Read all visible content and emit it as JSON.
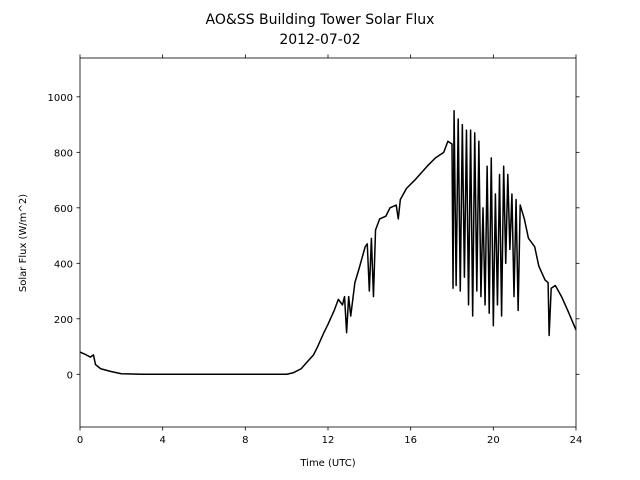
{
  "chart_data": {
    "type": "line",
    "title": "AO&SS Building Tower Solar Flux",
    "subtitle": "2012-07-02",
    "x_label": "Time (UTC)",
    "y_label": "Solar Flux (W/m^2)",
    "color": "#000000",
    "xlim": [
      0,
      24
    ],
    "ylim": [
      -190,
      1140
    ],
    "xticks": [
      0,
      4,
      8,
      12,
      16,
      20,
      24
    ],
    "yticks": [
      0,
      200,
      400,
      600,
      800,
      1000
    ],
    "x": [
      0,
      0.3,
      0.5,
      0.65,
      0.75,
      1.0,
      1.5,
      2,
      3,
      10,
      10.3,
      10.7,
      11,
      11.3,
      11.5,
      11.8,
      12,
      12.3,
      12.5,
      12.7,
      12.8,
      12.9,
      13.0,
      13.1,
      13.3,
      13.5,
      13.8,
      13.9,
      14.0,
      14.1,
      14.2,
      14.3,
      14.5,
      14.8,
      15.0,
      15.3,
      15.4,
      15.5,
      15.8,
      16.2,
      16.8,
      17.2,
      17.6,
      17.8,
      18.0,
      18.05,
      18.1,
      18.2,
      18.3,
      18.4,
      18.5,
      18.6,
      18.7,
      18.8,
      18.9,
      19.0,
      19.1,
      19.2,
      19.3,
      19.4,
      19.5,
      19.6,
      19.7,
      19.8,
      19.9,
      20.0,
      20.1,
      20.2,
      20.3,
      20.4,
      20.5,
      20.6,
      20.7,
      20.8,
      20.9,
      21.0,
      21.1,
      21.2,
      21.3,
      21.5,
      21.7,
      22.0,
      22.2,
      22.5,
      22.65,
      22.7,
      22.8,
      23.0,
      23.3,
      23.6,
      24.0
    ],
    "values": [
      80,
      70,
      62,
      70,
      35,
      20,
      10,
      2,
      0,
      0,
      5,
      20,
      45,
      70,
      100,
      150,
      180,
      230,
      270,
      250,
      280,
      150,
      280,
      210,
      330,
      380,
      460,
      470,
      300,
      490,
      280,
      520,
      560,
      570,
      600,
      610,
      560,
      630,
      670,
      700,
      750,
      780,
      800,
      840,
      830,
      310,
      950,
      320,
      920,
      300,
      900,
      350,
      880,
      250,
      880,
      210,
      870,
      300,
      840,
      280,
      600,
      250,
      750,
      220,
      780,
      175,
      650,
      250,
      720,
      210,
      750,
      400,
      720,
      450,
      650,
      280,
      630,
      230,
      610,
      560,
      490,
      460,
      390,
      340,
      330,
      140,
      310,
      320,
      280,
      230,
      160
    ]
  }
}
